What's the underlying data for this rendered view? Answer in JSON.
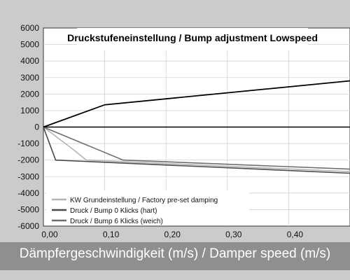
{
  "chart_data": {
    "type": "line",
    "title": "Druckstufeneinstellung / Bump adjustment Lowspeed",
    "xlabel": "Dämpfergeschwindigkeit (m/s) / Damper speed (m/s)",
    "ylabel": "",
    "xlim": [
      0,
      0.5
    ],
    "ylim": [
      -6000,
      6000
    ],
    "x_ticks": [
      "0,00",
      "0,10",
      "0,20",
      "0,30",
      "0,40"
    ],
    "x_tick_values": [
      0,
      0.1,
      0.2,
      0.3,
      0.4
    ],
    "y_ticks": [
      "6000",
      "5000",
      "4000",
      "3000",
      "2000",
      "1000",
      "0",
      "-1000",
      "-2000",
      "-3000",
      "-4000",
      "-5000",
      "-6000"
    ],
    "y_tick_values": [
      6000,
      5000,
      4000,
      3000,
      2000,
      1000,
      0,
      -1000,
      -2000,
      -3000,
      -4000,
      -5000,
      -6000
    ],
    "grid": true,
    "legend_position": "bottom-left",
    "series": [
      {
        "name": "KW Grundeinstellung / Factory pre-set damping",
        "color": "#b4b4b4",
        "x": [
          0,
          0.05,
          0.07,
          0.5
        ],
        "y": [
          0,
          -1400,
          -2000,
          -2700
        ]
      },
      {
        "name": "Druck / Bump 0 Klicks (hart)",
        "color": "#4a4a4a",
        "x": [
          0,
          0.02,
          0.5
        ],
        "y": [
          0,
          -2000,
          -2800
        ]
      },
      {
        "name": "Druck / Bump 6 Klicks (weich)",
        "color": "#6e6e6e",
        "x": [
          0,
          0.13,
          0.5
        ],
        "y": [
          0,
          -2000,
          -2550
        ]
      },
      {
        "name": "",
        "color": "#000000",
        "x": [
          0,
          0.1,
          0.5
        ],
        "y": [
          0,
          1350,
          2800
        ]
      }
    ]
  }
}
